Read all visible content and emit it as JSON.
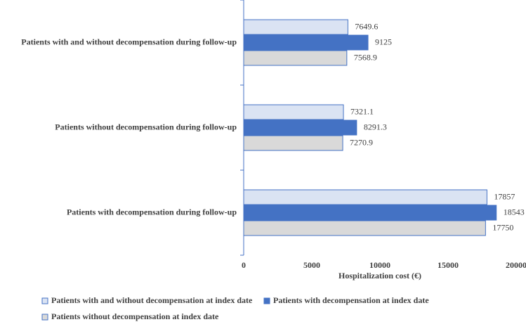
{
  "chart_data": {
    "type": "bar",
    "orientation": "horizontal",
    "categories": [
      "Patients with and without decompensation during follow-up",
      "Patients without decompensation during follow-up",
      "Patients with decompensation during follow-up"
    ],
    "series": [
      {
        "name": "Patients with and without decompensation at index date",
        "color": "#dae3f3",
        "values": [
          7649.6,
          7321.1,
          17857
        ]
      },
      {
        "name": "Patients with decompensation at index date",
        "color": "#4472c4",
        "values": [
          9125,
          8291.3,
          18543
        ]
      },
      {
        "name": "Patients without decompensation at index date",
        "color": "#d9d9d9",
        "values": [
          7568.9,
          7270.9,
          17750
        ]
      }
    ],
    "xlabel": "Hospitalization cost (€)",
    "xlim": [
      0,
      20000
    ],
    "xticks": [
      0,
      5000,
      10000,
      15000,
      20000
    ],
    "grid": false
  }
}
